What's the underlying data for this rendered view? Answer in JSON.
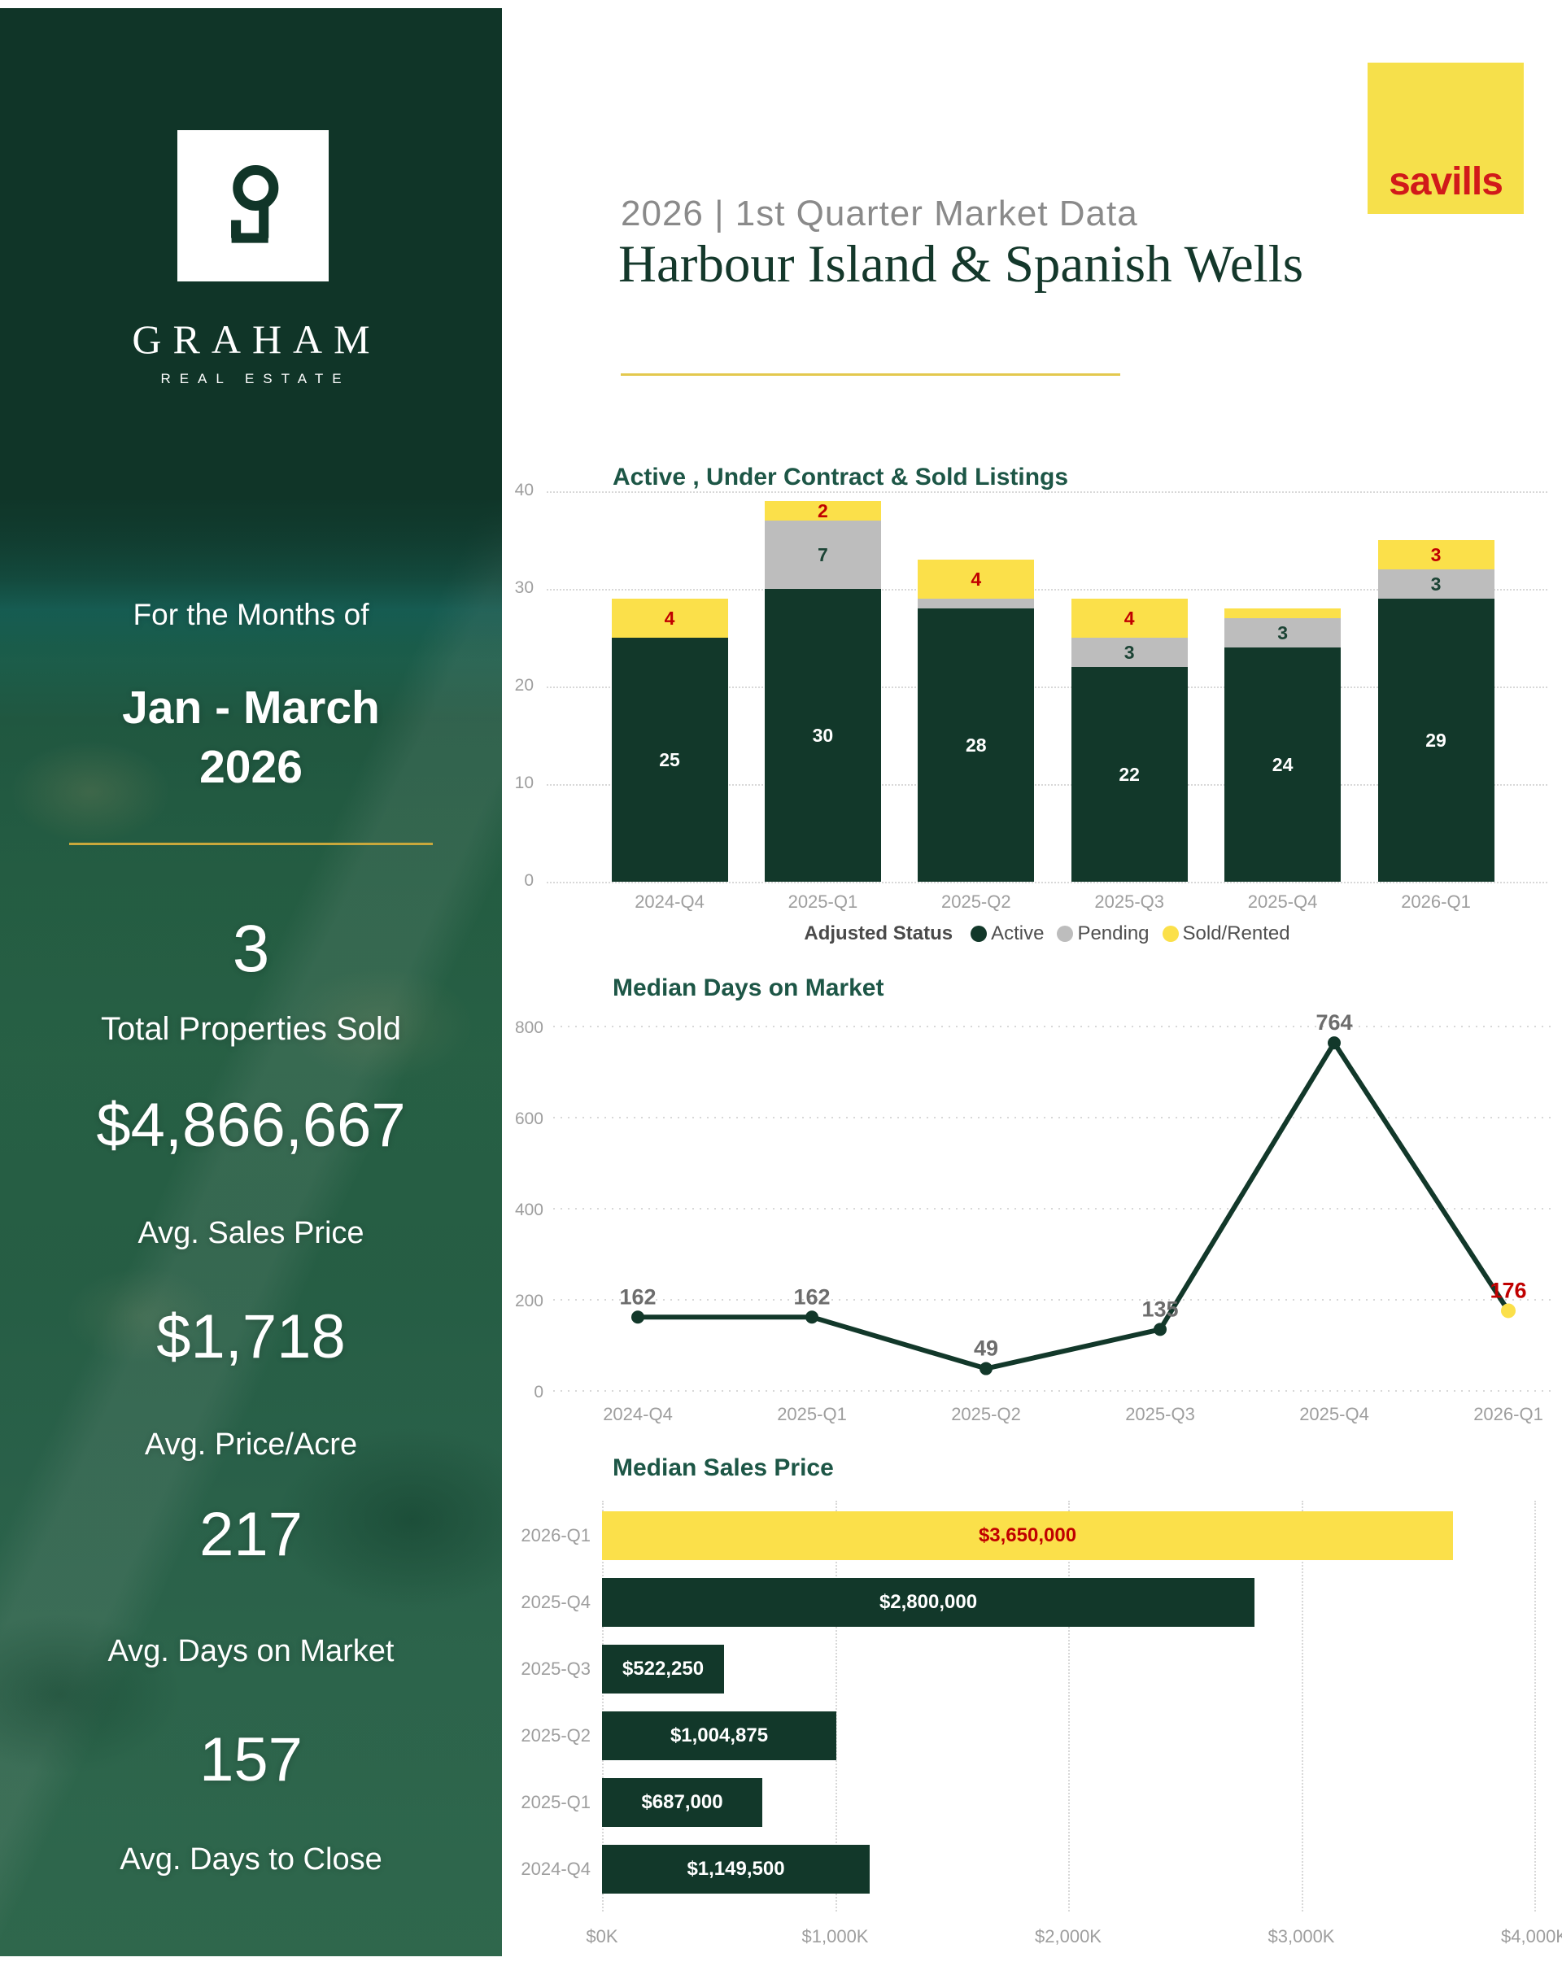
{
  "sidebar": {
    "brand_name": "GRAHAM",
    "brand_tagline": "REAL ESTATE",
    "logo_icon": "keyhole-icon",
    "period_intro": "For the Months of",
    "period_line1": "Jan - March",
    "period_line2": "2026",
    "divider_color": "#C9A83C",
    "background_color": "#103528",
    "stats": [
      {
        "value": "3",
        "label": "Total Properties Sold"
      },
      {
        "value": "$4,866,667",
        "label": "Avg. Sales Price"
      },
      {
        "value": "$1,718",
        "label": "Avg. Price/Acre"
      },
      {
        "value": "217",
        "label": "Avg. Days on Market"
      },
      {
        "value": "157",
        "label": "Avg. Days to Close"
      }
    ]
  },
  "header": {
    "subtitle": "2026 | 1st  Quarter Market Data",
    "title": "Harbour Island & Spanish Wells",
    "underline_color": "#E3C84E",
    "partner_logo": {
      "text": "savills",
      "background": "#F6E04B",
      "text_color": "#D11A1A"
    }
  },
  "chart_style": {
    "title_color": "#1D5646",
    "axis_color": "#9E9E9E",
    "grid_color": "#D8D8D8"
  },
  "chart_data": [
    {
      "type": "bar",
      "stacked": true,
      "title": "Active , Under Contract & Sold Listings",
      "categories": [
        "2024-Q4",
        "2025-Q1",
        "2025-Q2",
        "2025-Q3",
        "2025-Q4",
        "2026-Q1"
      ],
      "series": [
        {
          "name": "Active",
          "color": "#12382A",
          "label_color": "#FFFFFF",
          "values": [
            25,
            30,
            28,
            22,
            24,
            29
          ]
        },
        {
          "name": "Pending",
          "color": "#BDBDBD",
          "label_color": "#1C4435",
          "values": [
            0,
            7,
            1,
            3,
            3,
            3
          ]
        },
        {
          "name": "Sold/Rented",
          "color": "#FBE04A",
          "label_color": "#C00000",
          "values": [
            4,
            2,
            4,
            4,
            1,
            3
          ]
        }
      ],
      "legend_title": "Adjusted Status",
      "legend_position": "bottom",
      "grid": "dotted-horizontal",
      "ylim": [
        0,
        40
      ],
      "yticks": [
        0,
        10,
        20,
        30,
        40
      ],
      "min_label_value": 2
    },
    {
      "type": "line",
      "title": "Median Days on Market",
      "categories": [
        "2024-Q4",
        "2025-Q1",
        "2025-Q2",
        "2025-Q3",
        "2025-Q4",
        "2026-Q1"
      ],
      "values": [
        162,
        162,
        49,
        135,
        764,
        176
      ],
      "line_color": "#12382A",
      "point_color": "#12382A",
      "last_point_color": "#FBE04A",
      "label_color": "#6D6D6D",
      "last_label_color": "#C00000",
      "grid": "dotted-horizontal",
      "ylim": [
        0,
        800
      ],
      "yticks": [
        0,
        200,
        400,
        600,
        800
      ]
    },
    {
      "type": "bar",
      "orientation": "horizontal",
      "title": "Median Sales Price",
      "categories": [
        "2026-Q1",
        "2025-Q4",
        "2025-Q3",
        "2025-Q2",
        "2025-Q1",
        "2024-Q4"
      ],
      "values": [
        3650000,
        2800000,
        522250,
        1004875,
        687000,
        1149500
      ],
      "value_labels": [
        "$3,650,000",
        "$2,800,000",
        "$522,250",
        "$1,004,875",
        "$687,000",
        "$1,149,500"
      ],
      "bar_colors": [
        "#FBE04A",
        "#12382A",
        "#12382A",
        "#12382A",
        "#12382A",
        "#12382A"
      ],
      "value_label_colors": [
        "#C00000",
        "#FFFFFF",
        "#FFFFFF",
        "#FFFFFF",
        "#FFFFFF",
        "#FFFFFF"
      ],
      "grid": "dotted-vertical",
      "xlim": [
        0,
        4000000
      ],
      "xticks": [
        0,
        1000000,
        2000000,
        3000000,
        4000000
      ],
      "xtick_labels": [
        "$0K",
        "$1,000K",
        "$2,000K",
        "$3,000K",
        "$4,000K"
      ]
    }
  ]
}
